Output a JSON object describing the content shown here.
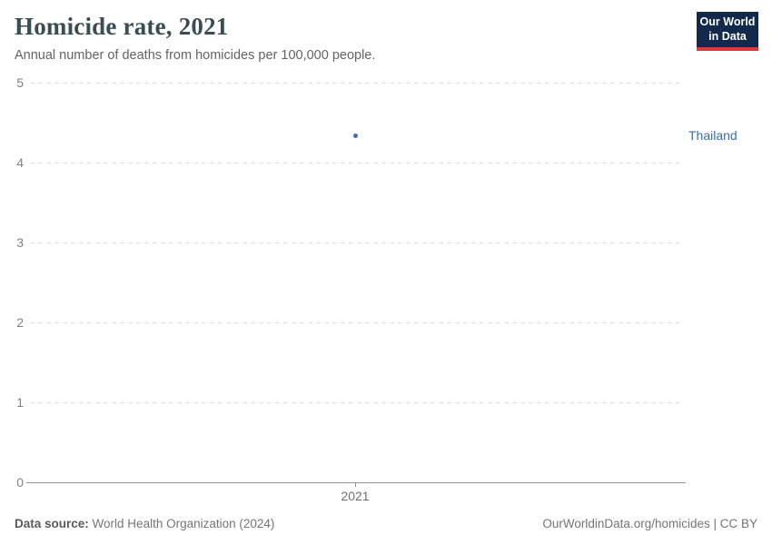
{
  "header": {
    "title": "Homicide rate, 2021",
    "subtitle": "Annual number of deaths from homicides per 100,000 people."
  },
  "logo": {
    "line1": "Our World",
    "line2": "in Data",
    "navy": "#12294b",
    "red": "#dc3b32"
  },
  "chart_data": {
    "type": "scatter",
    "title": "Homicide rate, 2021",
    "x": [
      2021
    ],
    "x_tick_labels": [
      "2021"
    ],
    "series": [
      {
        "name": "Thailand",
        "values": [
          4.34
        ],
        "color": "#3c6db0"
      }
    ],
    "ylim": [
      0,
      5
    ],
    "yticks": [
      0,
      1,
      2,
      3,
      4,
      5
    ],
    "xlabel": "",
    "ylabel": "",
    "grid": "horizontal-dashed",
    "legend_position": "right-entity-label"
  },
  "footer": {
    "source_label": "Data source:",
    "source_value": "World Health Organization (2024)",
    "credit": "OurWorldinData.org/homicides | CC BY"
  }
}
